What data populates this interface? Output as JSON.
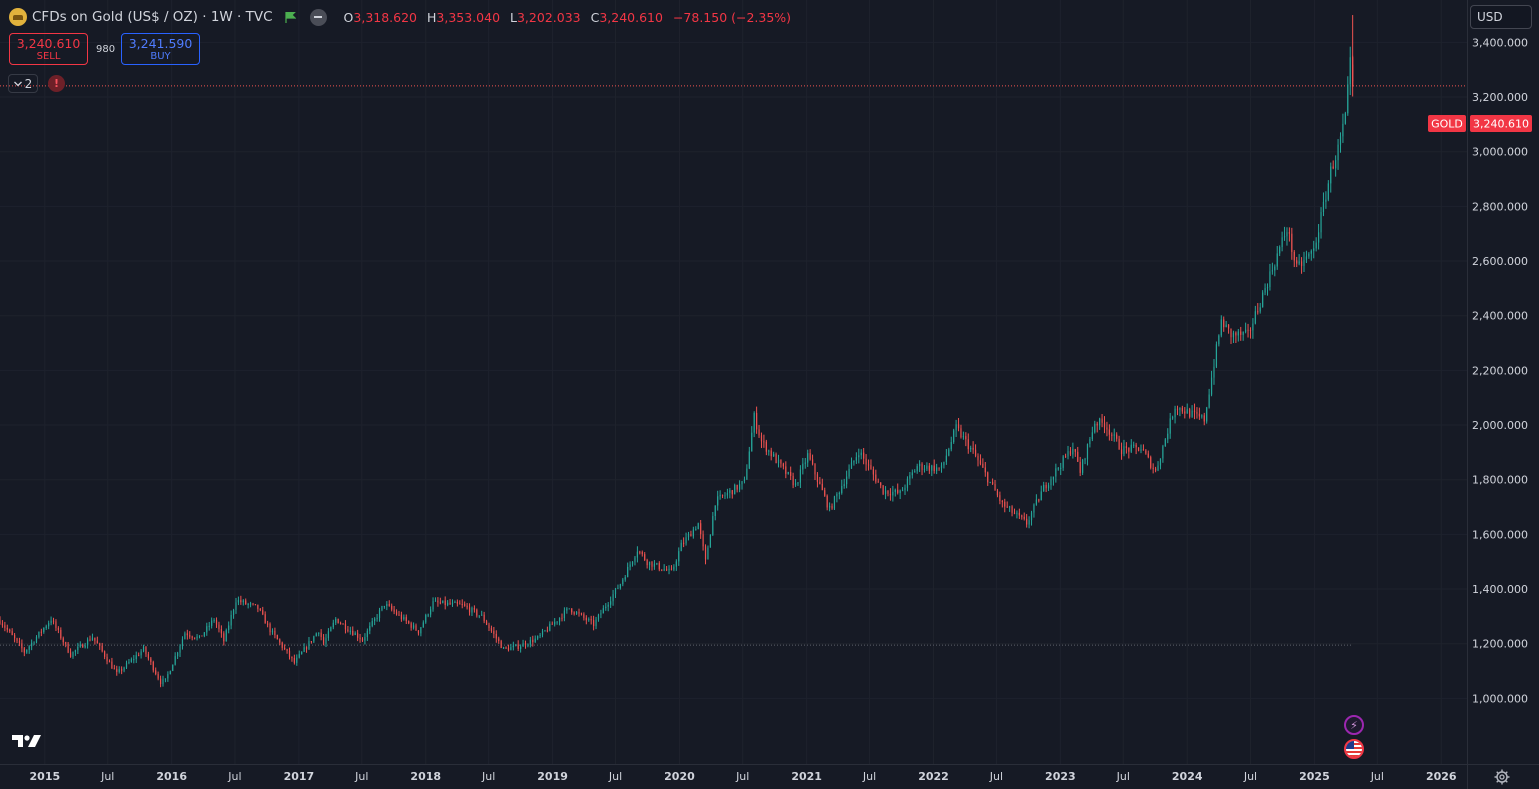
{
  "symbol": {
    "logo_icon": "gold-bar-icon",
    "title": "CFDs on Gold (US$ / OZ)",
    "interval": "1W",
    "exchange": "TVC",
    "ohlc": {
      "o_label": "O",
      "o": "3,318.620",
      "h_label": "H",
      "h": "3,353.040",
      "l_label": "L",
      "l": "3,202.033",
      "c_label": "C",
      "c": "3,240.610",
      "change": "−78.150 (−2.35%)"
    }
  },
  "trade": {
    "sell_price": "3,240.610",
    "sell_label": "SELL",
    "buy_price": "3,241.590",
    "buy_label": "BUY",
    "spread": "980"
  },
  "indicators": {
    "count": "2"
  },
  "currency": "USD",
  "price_tag": {
    "symbol": "GOLD",
    "price": "3,240.610"
  },
  "colors": {
    "up": "#26a69a",
    "down": "#ef5350",
    "background": "#161a25",
    "grid": "#2a2e39",
    "text": "#d1d4dc"
  },
  "chart_data": {
    "type": "candlestick",
    "title": "CFDs on Gold (US$ / OZ)",
    "interval": "1W",
    "y_ticks": [
      1000,
      1200,
      1400,
      1600,
      1800,
      2000,
      2200,
      2400,
      2600,
      2800,
      3000,
      3200,
      3400
    ],
    "y_tick_labels": [
      "1,000.000",
      "1,200.000",
      "1,400.000",
      "1,600.000",
      "1,800.000",
      "2,000.000",
      "2,200.000",
      "2,400.000",
      "2,600.000",
      "2,800.000",
      "3,000.000",
      "3,200.000",
      "3,400.000"
    ],
    "ylim": [
      760,
      3555
    ],
    "x_ticks": [
      {
        "label": "2015",
        "date": "2015-01-01"
      },
      {
        "label": "Jul",
        "date": "2015-07-01"
      },
      {
        "label": "2016",
        "date": "2016-01-01"
      },
      {
        "label": "Jul",
        "date": "2016-07-01"
      },
      {
        "label": "2017",
        "date": "2017-01-01"
      },
      {
        "label": "Jul",
        "date": "2017-07-01"
      },
      {
        "label": "2018",
        "date": "2018-01-01"
      },
      {
        "label": "Jul",
        "date": "2018-07-01"
      },
      {
        "label": "2019",
        "date": "2019-01-01"
      },
      {
        "label": "Jul",
        "date": "2019-07-01"
      },
      {
        "label": "2020",
        "date": "2020-01-01"
      },
      {
        "label": "Jul",
        "date": "2020-07-01"
      },
      {
        "label": "2021",
        "date": "2021-01-01"
      },
      {
        "label": "Jul",
        "date": "2021-07-01"
      },
      {
        "label": "2022",
        "date": "2022-01-01"
      },
      {
        "label": "Jul",
        "date": "2022-07-01"
      },
      {
        "label": "2023",
        "date": "2023-01-01"
      },
      {
        "label": "Jul",
        "date": "2023-07-01"
      },
      {
        "label": "2024",
        "date": "2024-01-01"
      },
      {
        "label": "Jul",
        "date": "2024-07-01"
      },
      {
        "label": "2025",
        "date": "2025-01-01"
      },
      {
        "label": "Jul",
        "date": "2025-07-01"
      },
      {
        "label": "2026",
        "date": "2026-01-01"
      }
    ],
    "x_range": [
      "2014-08-25",
      "2026-03-16"
    ],
    "horizontal_lines": [
      {
        "value": 3240.61,
        "style": "dotted",
        "color": "#ef5350"
      },
      {
        "value": 1195,
        "style": "dotted",
        "color": "#5d606b"
      }
    ],
    "close_path": [
      [
        "2014-08-25",
        1285
      ],
      [
        "2014-11-03",
        1170
      ],
      [
        "2015-01-19",
        1290
      ],
      [
        "2015-03-16",
        1160
      ],
      [
        "2015-05-18",
        1225
      ],
      [
        "2015-07-27",
        1090
      ],
      [
        "2015-10-12",
        1180
      ],
      [
        "2015-11-30",
        1060
      ],
      [
        "2015-12-14",
        1065
      ],
      [
        "2016-02-08",
        1240
      ],
      [
        "2016-03-21",
        1220
      ],
      [
        "2016-05-02",
        1290
      ],
      [
        "2016-05-30",
        1210
      ],
      [
        "2016-07-04",
        1360
      ],
      [
        "2016-09-05",
        1330
      ],
      [
        "2016-10-10",
        1250
      ],
      [
        "2016-12-19",
        1130
      ],
      [
        "2017-02-27",
        1250
      ],
      [
        "2017-03-13",
        1200
      ],
      [
        "2017-04-17",
        1290
      ],
      [
        "2017-07-03",
        1215
      ],
      [
        "2017-09-04",
        1345
      ],
      [
        "2017-12-11",
        1245
      ],
      [
        "2018-01-22",
        1350
      ],
      [
        "2018-04-16",
        1340
      ],
      [
        "2018-06-11",
        1300
      ],
      [
        "2018-08-13",
        1180
      ],
      [
        "2018-09-24",
        1190
      ],
      [
        "2018-11-19",
        1220
      ],
      [
        "2019-02-18",
        1330
      ],
      [
        "2019-04-29",
        1270
      ],
      [
        "2019-06-03",
        1340
      ],
      [
        "2019-07-15",
        1420
      ],
      [
        "2019-09-02",
        1545
      ],
      [
        "2019-09-30",
        1500
      ],
      [
        "2019-12-09",
        1460
      ],
      [
        "2020-01-06",
        1560
      ],
      [
        "2020-02-24",
        1640
      ],
      [
        "2020-03-16",
        1500
      ],
      [
        "2020-04-13",
        1720
      ],
      [
        "2020-07-06",
        1790
      ],
      [
        "2020-08-03",
        2030
      ],
      [
        "2020-08-24",
        1940
      ],
      [
        "2020-11-30",
        1780
      ],
      [
        "2021-01-04",
        1890
      ],
      [
        "2021-03-08",
        1690
      ],
      [
        "2021-05-31",
        1905
      ],
      [
        "2021-08-09",
        1760
      ],
      [
        "2021-09-27",
        1750
      ],
      [
        "2021-11-15",
        1850
      ],
      [
        "2022-01-24",
        1840
      ],
      [
        "2022-03-07",
        1990
      ],
      [
        "2022-04-25",
        1900
      ],
      [
        "2022-07-18",
        1710
      ],
      [
        "2022-09-26",
        1640
      ],
      [
        "2022-11-14",
        1770
      ],
      [
        "2023-02-06",
        1920
      ],
      [
        "2023-02-27",
        1830
      ],
      [
        "2023-04-10",
        2010
      ],
      [
        "2023-05-08",
        2005
      ],
      [
        "2023-06-26",
        1910
      ],
      [
        "2023-08-21",
        1915
      ],
      [
        "2023-10-02",
        1830
      ],
      [
        "2023-11-27",
        2070
      ],
      [
        "2024-01-29",
        2030
      ],
      [
        "2024-02-19",
        2020
      ],
      [
        "2024-04-08",
        2380
      ],
      [
        "2024-05-06",
        2330
      ],
      [
        "2024-06-24",
        2330
      ],
      [
        "2024-08-12",
        2500
      ],
      [
        "2024-10-14",
        2720
      ],
      [
        "2024-11-11",
        2570
      ],
      [
        "2024-12-30",
        2640
      ],
      [
        "2025-01-27",
        2800
      ],
      [
        "2025-02-17",
        2930
      ],
      [
        "2025-03-10",
        3010
      ],
      [
        "2025-03-31",
        3120
      ],
      [
        "2025-04-14",
        3320
      ],
      [
        "2025-04-21",
        3240.61
      ]
    ]
  }
}
